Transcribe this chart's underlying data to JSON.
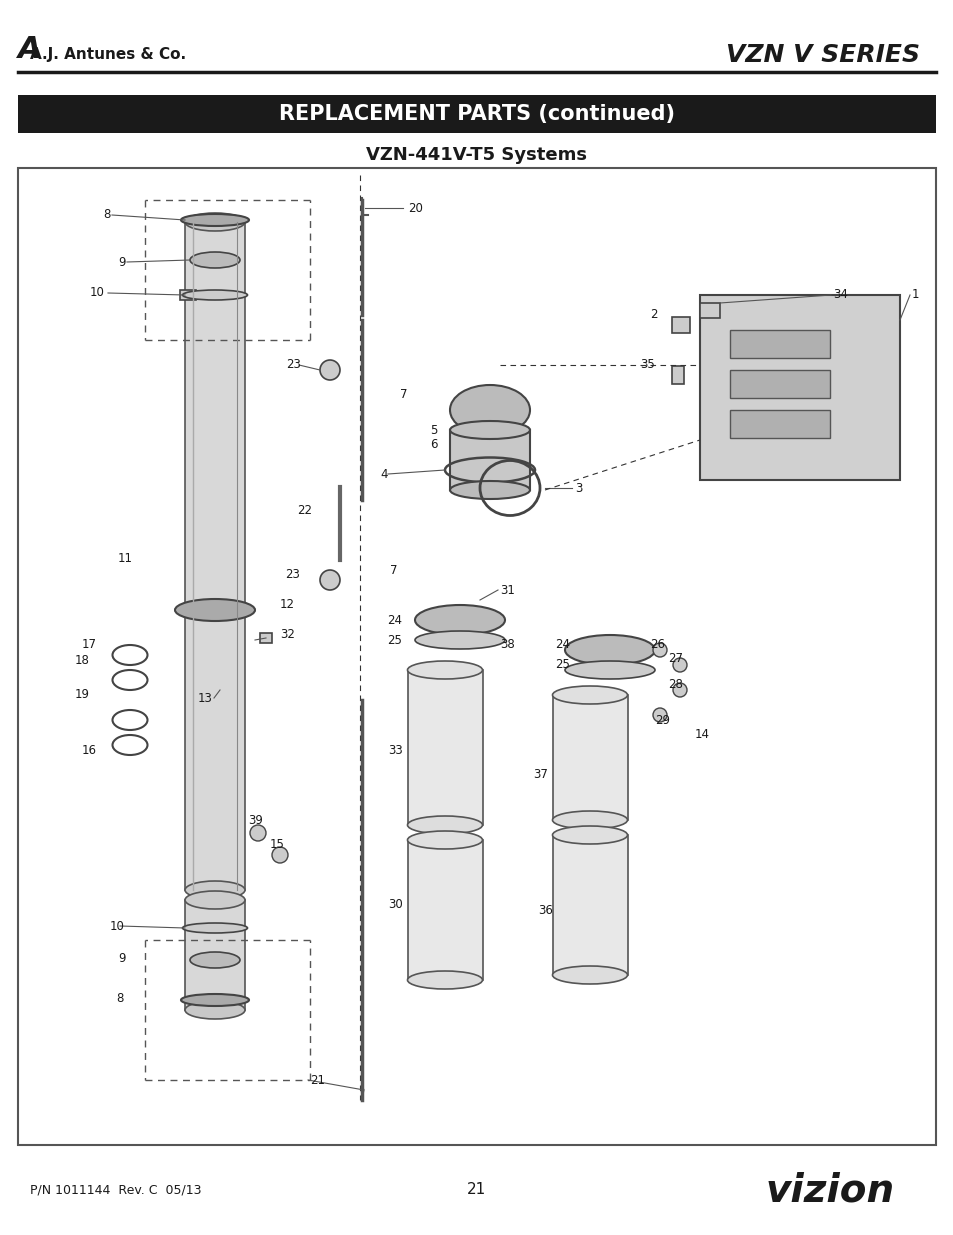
{
  "title_left": "A.J. Antunes & Co.",
  "title_right": "VZN V SERIES",
  "header_bar_text": "REPLACEMENT PARTS (continued)",
  "subtitle": "VZN-441V-T5 Systems",
  "footer_left": "P/N 1011144  Rev. C  05/13",
  "footer_center": "21",
  "footer_right": "vizion",
  "bg_color": "#ffffff",
  "header_bar_color": "#1a1a1a",
  "header_bar_text_color": "#ffffff",
  "diagram_border_color": "#555555",
  "text_color": "#1a1a1a",
  "fig_width": 9.54,
  "fig_height": 12.35,
  "dpi": 100
}
